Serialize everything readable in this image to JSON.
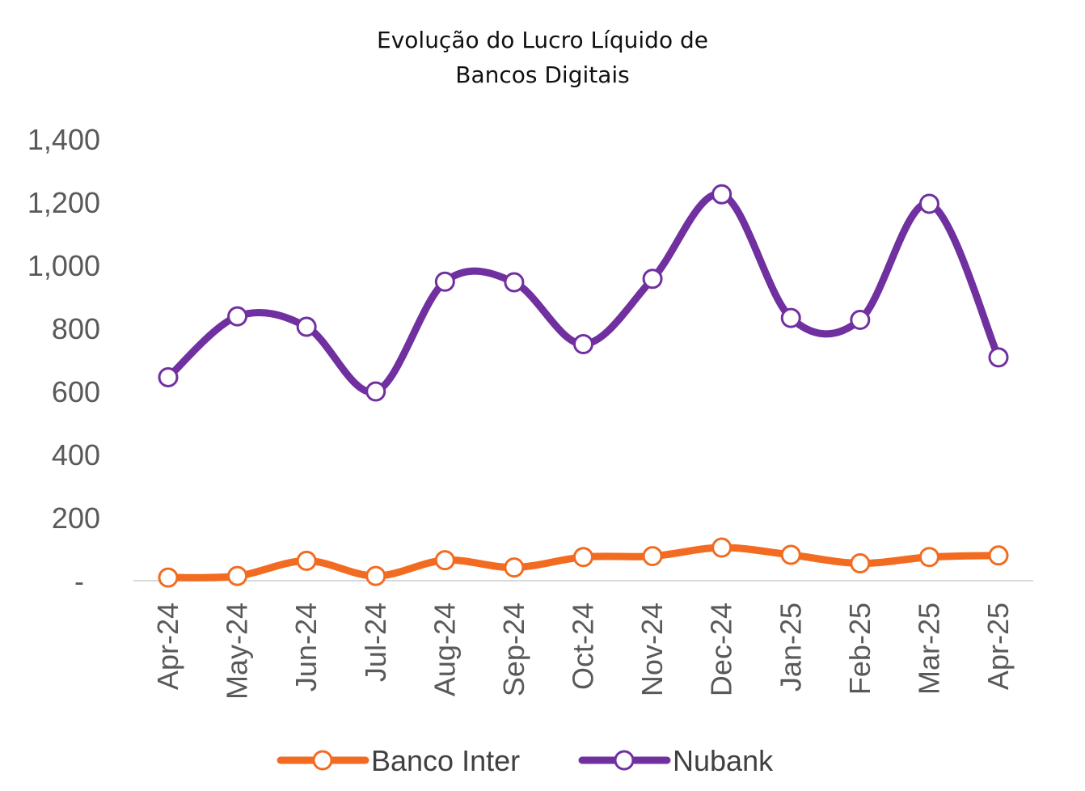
{
  "chart_data": {
    "type": "line",
    "title_lines": [
      "Evolução do Lucro Líquido de",
      "Bancos Digitais"
    ],
    "x": [
      "Apr-24",
      "May-24",
      "Jun-24",
      "Jul-24",
      "Aug-24",
      "Sep-24",
      "Oct-24",
      "Nov-24",
      "Dec-24",
      "Jan-25",
      "Feb-25",
      "Mar-25",
      "Apr-25"
    ],
    "ylim": [
      0,
      1400
    ],
    "yticks": [
      {
        "value": 0,
        "label": "-"
      },
      {
        "value": 200,
        "label": "200"
      },
      {
        "value": 400,
        "label": "400"
      },
      {
        "value": 600,
        "label": "600"
      },
      {
        "value": 800,
        "label": "800"
      },
      {
        "value": 1000,
        "label": "1,000"
      },
      {
        "value": 1200,
        "label": "1,200"
      },
      {
        "value": 1400,
        "label": "1,400"
      }
    ],
    "grid": false,
    "smooth": true,
    "legend_position": "bottom",
    "series": [
      {
        "name": "Banco Inter",
        "color": "#F26B21",
        "values": [
          10,
          15,
          63,
          15,
          65,
          42,
          75,
          78,
          105,
          82,
          55,
          75,
          80
        ]
      },
      {
        "name": "Nubank",
        "color": "#7030A0",
        "values": [
          645,
          838,
          805,
          600,
          948,
          946,
          750,
          957,
          1225,
          833,
          827,
          1195,
          708
        ]
      }
    ]
  }
}
